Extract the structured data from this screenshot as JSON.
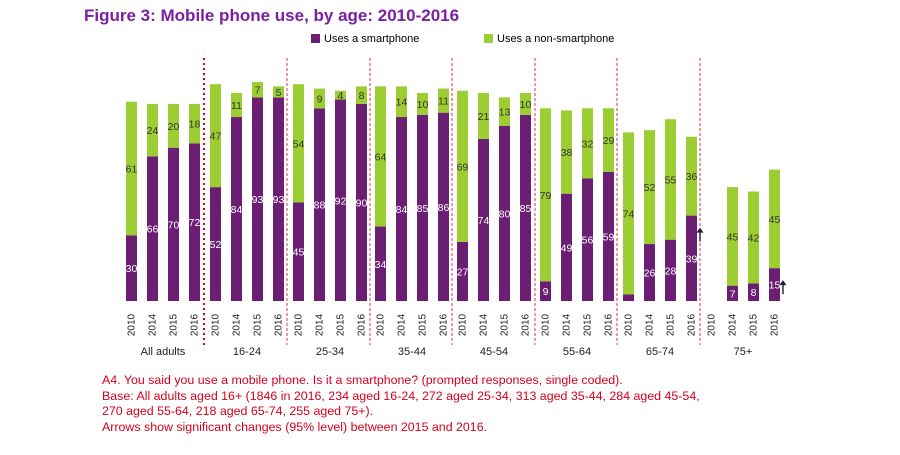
{
  "title": "Figure 3: Mobile phone use, by age: 2010-2016",
  "colors": {
    "smartphone": "#6b1f73",
    "non_smartphone": "#9ccd32",
    "title": "#7b1fa2",
    "notes": "#d6001c"
  },
  "notes": [
    "A4. You said you use a mobile phone. Is it a smartphone? (prompted responses, single coded).",
    "Base: All adults aged 16+ (1846 in 2016, 234 aged 16-24, 272 aged 25-34, 313 aged 35-44, 284 aged 45-54,",
    "270 aged 55-64, 218 aged 65-74, 255 aged 75+).",
    "Arrows show significant changes (95% level) between 2015 and 2016."
  ],
  "chart_data": {
    "type": "bar",
    "stacked": true,
    "legend": [
      "Uses a smartphone",
      "Uses a non-smartphone"
    ],
    "legend_position": "top",
    "years": [
      "2010",
      "2014",
      "2015",
      "2016"
    ],
    "groups": [
      {
        "name": "All adults",
        "smartphone": [
          30,
          66,
          70,
          72
        ],
        "non_smartphone": [
          61,
          24,
          20,
          18
        ],
        "arrow_2016": false
      },
      {
        "name": "16-24",
        "smartphone": [
          52,
          84,
          93,
          93
        ],
        "non_smartphone": [
          47,
          11,
          7,
          5
        ],
        "arrow_2016": false
      },
      {
        "name": "25-34",
        "smartphone": [
          45,
          88,
          92,
          90
        ],
        "non_smartphone": [
          54,
          9,
          4,
          8
        ],
        "arrow_2016": false
      },
      {
        "name": "35-44",
        "smartphone": [
          34,
          84,
          85,
          86
        ],
        "non_smartphone": [
          64,
          14,
          10,
          11
        ],
        "arrow_2016": false
      },
      {
        "name": "45-54",
        "smartphone": [
          27,
          74,
          80,
          85
        ],
        "non_smartphone": [
          69,
          21,
          13,
          10
        ],
        "arrow_2016": false
      },
      {
        "name": "55-64",
        "smartphone": [
          9,
          49,
          56,
          59
        ],
        "non_smartphone": [
          79,
          38,
          32,
          29
        ],
        "arrow_2016": false
      },
      {
        "name": "65-74",
        "smartphone": [
          3,
          26,
          28,
          39
        ],
        "non_smartphone": [
          74,
          52,
          55,
          36
        ],
        "arrow_2016": true
      },
      {
        "name": "75+",
        "smartphone": [
          null,
          7,
          8,
          15
        ],
        "non_smartphone": [
          null,
          45,
          42,
          45
        ],
        "arrow_2016": true
      }
    ]
  }
}
